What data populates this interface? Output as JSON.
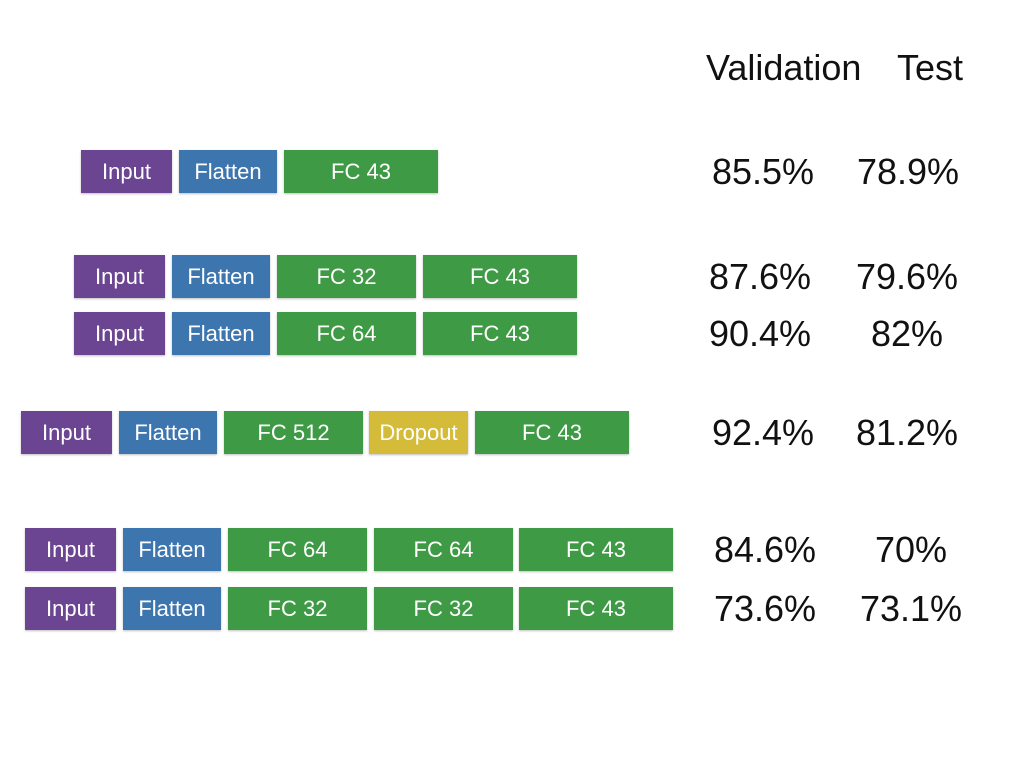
{
  "header": {
    "validation_label": "Validation",
    "test_label": "Test"
  },
  "colors": {
    "input": "#6b4592",
    "flatten": "#3d75ae",
    "fc": "#3f9a46",
    "dropout": "#d4bc3a"
  },
  "models": [
    {
      "layers": [
        {
          "type": "input",
          "label": "Input"
        },
        {
          "type": "flatten",
          "label": "Flatten"
        },
        {
          "type": "fc",
          "label": "FC 43"
        }
      ],
      "validation": "85.5%",
      "test": "78.9%"
    },
    {
      "layers": [
        {
          "type": "input",
          "label": "Input"
        },
        {
          "type": "flatten",
          "label": "Flatten"
        },
        {
          "type": "fc",
          "label": "FC 32"
        },
        {
          "type": "fc",
          "label": "FC 43"
        }
      ],
      "validation": "87.6%",
      "test": "79.6%"
    },
    {
      "layers": [
        {
          "type": "input",
          "label": "Input"
        },
        {
          "type": "flatten",
          "label": "Flatten"
        },
        {
          "type": "fc",
          "label": "FC 64"
        },
        {
          "type": "fc",
          "label": "FC 43"
        }
      ],
      "validation": "90.4%",
      "test": "82%"
    },
    {
      "layers": [
        {
          "type": "input",
          "label": "Input"
        },
        {
          "type": "flatten",
          "label": "Flatten"
        },
        {
          "type": "fc",
          "label": "FC 512"
        },
        {
          "type": "dropout",
          "label": "Dropout"
        },
        {
          "type": "fc",
          "label": "FC 43"
        }
      ],
      "validation": "92.4%",
      "test": "81.2%"
    },
    {
      "layers": [
        {
          "type": "input",
          "label": "Input"
        },
        {
          "type": "flatten",
          "label": "Flatten"
        },
        {
          "type": "fc",
          "label": "FC 64"
        },
        {
          "type": "fc",
          "label": "FC 64"
        },
        {
          "type": "fc",
          "label": "FC 43"
        }
      ],
      "validation": "84.6%",
      "test": "70%"
    },
    {
      "layers": [
        {
          "type": "input",
          "label": "Input"
        },
        {
          "type": "flatten",
          "label": "Flatten"
        },
        {
          "type": "fc",
          "label": "FC 32"
        },
        {
          "type": "fc",
          "label": "FC 32"
        },
        {
          "type": "fc",
          "label": "FC 43"
        }
      ],
      "validation": "73.6%",
      "test": "73.1%"
    }
  ]
}
